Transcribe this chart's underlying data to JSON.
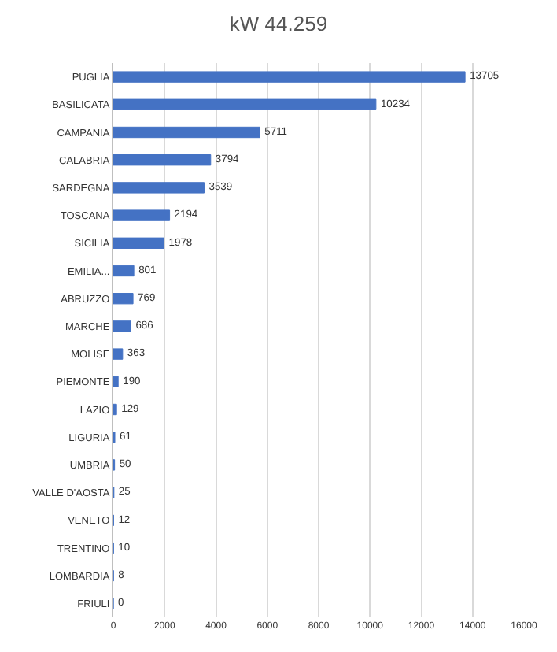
{
  "chart_data": {
    "type": "bar",
    "orientation": "horizontal",
    "title": "kW 44.259",
    "categories": [
      "PUGLIA",
      "BASILICATA",
      "CAMPANIA",
      "CALABRIA",
      "SARDEGNA",
      "TOSCANA",
      "SICILIA",
      "EMILIA...",
      "ABRUZZO",
      "MARCHE",
      "MOLISE",
      "PIEMONTE",
      "LAZIO",
      "LIGURIA",
      "UMBRIA",
      "VALLE D'AOSTA",
      "VENETO",
      "TRENTINO",
      "LOMBARDIA",
      "FRIULI"
    ],
    "values": [
      13705,
      10234,
      5711,
      3794,
      3539,
      2194,
      1978,
      801,
      769,
      686,
      363,
      190,
      129,
      61,
      50,
      25,
      12,
      10,
      8,
      0
    ],
    "color": "#4472c4",
    "data_labels": true,
    "xlim": [
      0,
      16000
    ],
    "xticks": [
      0,
      2000,
      4000,
      6000,
      8000,
      10000,
      12000,
      14000,
      16000
    ],
    "grid": "x",
    "legend": false
  }
}
